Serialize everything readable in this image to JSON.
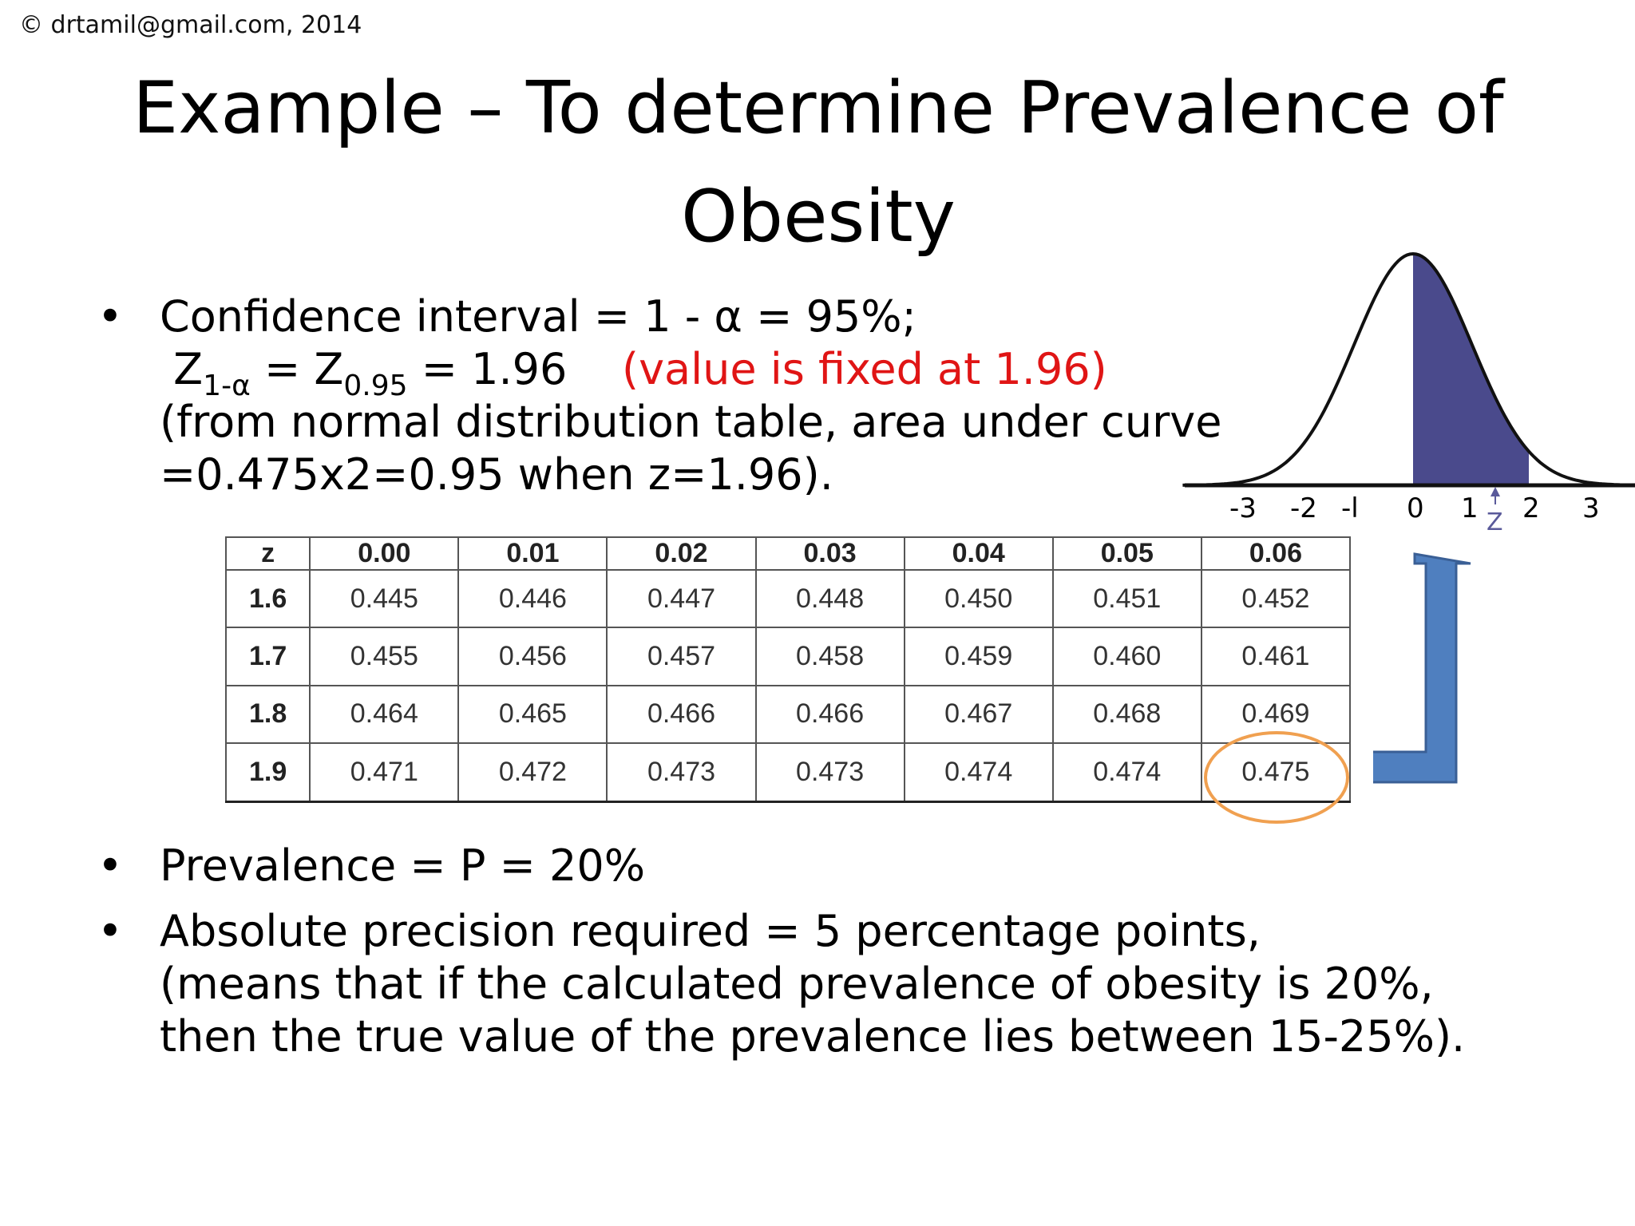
{
  "copyright": "© drtamil@gmail.com, 2014",
  "title": "Example – To determine Prevalence of Obesity",
  "bullet1": {
    "line1": "Confidence interval = 1 - α  = 95%;",
    "z_main": "Z",
    "z_sub": "1-α",
    "eq1": " = Z",
    "z95_sub": "0.95",
    "eq2": " = 1.96    ",
    "fixed_note": "(value is fixed at 1.96)",
    "line3": "(from normal distribution table, area under curve",
    "line4": "=0.475x2=0.95 when z=1.96)."
  },
  "bullet2": "Prevalence = P = 20%",
  "bullet3": {
    "line1": "Absolute precision required = 5 percentage points,",
    "line2": "(means that if the calculated prevalence of obesity is 20%,",
    "line3": "then the true value of the prevalence lies between 15-25%)."
  },
  "table": {
    "headers": [
      "z",
      "0.00",
      "0.01",
      "0.02",
      "0.03",
      "0.04",
      "0.05",
      "0.06"
    ],
    "rows": [
      [
        "1.6",
        "0.445",
        "0.446",
        "0.447",
        "0.448",
        "0.450",
        "0.451",
        "0.452"
      ],
      [
        "1.7",
        "0.455",
        "0.456",
        "0.457",
        "0.458",
        "0.459",
        "0.460",
        "0.461"
      ],
      [
        "1.8",
        "0.464",
        "0.465",
        "0.466",
        "0.466",
        "0.467",
        "0.468",
        "0.469"
      ],
      [
        "1.9",
        "0.471",
        "0.472",
        "0.473",
        "0.473",
        "0.474",
        "0.474",
        "0.475"
      ]
    ],
    "highlighted_value": "0.475"
  },
  "curve": {
    "tick_labels": [
      "-3",
      "-2",
      "-l",
      "0",
      "1",
      "2",
      "3"
    ],
    "z_marker": "Z",
    "shade_color": "#4a4a8c"
  },
  "colors": {
    "note": "#e01515",
    "circle": "#f0a050",
    "arrow_fill": "#4f7fbf",
    "arrow_stroke": "#3a5f95"
  }
}
